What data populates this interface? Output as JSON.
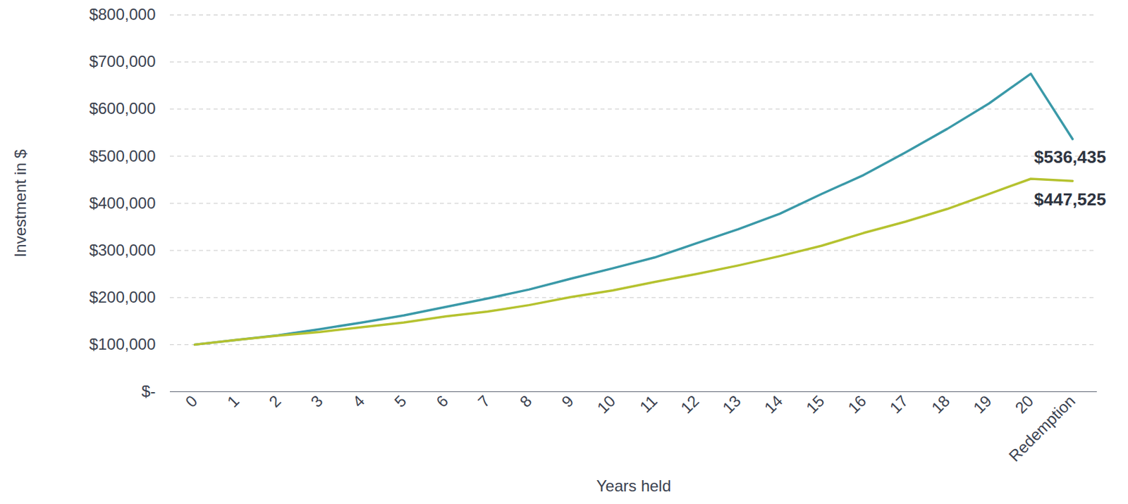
{
  "chart_data": {
    "type": "line",
    "x_label": "Years held",
    "y_label": "Investment in $",
    "categories": [
      "0",
      "1",
      "2",
      "3",
      "4",
      "5",
      "6",
      "7",
      "8",
      "9",
      "10",
      "11",
      "12",
      "13",
      "14",
      "15",
      "16",
      "17",
      "18",
      "19",
      "20",
      "Redemption"
    ],
    "series": [
      {
        "color": "#3a99a8",
        "values": [
          100000,
          110000,
          120000,
          133000,
          147000,
          162000,
          180000,
          198000,
          217000,
          240000,
          262000,
          285000,
          315000,
          345000,
          378000,
          420000,
          460000,
          508000,
          558000,
          612000,
          675000,
          536435
        ],
        "value_labels": [
          null,
          null,
          null,
          null,
          null,
          null,
          null,
          null,
          null,
          null,
          null,
          null,
          null,
          null,
          null,
          null,
          null,
          null,
          null,
          null,
          null,
          "$536,435"
        ]
      },
      {
        "color": "#b5c22f",
        "values": [
          100000,
          110000,
          119000,
          127000,
          137000,
          147000,
          160000,
          170000,
          184000,
          201000,
          215000,
          233000,
          250000,
          268000,
          288000,
          310000,
          337000,
          361000,
          388000,
          420000,
          452000,
          447525
        ],
        "value_labels": [
          null,
          null,
          null,
          null,
          null,
          null,
          null,
          null,
          null,
          null,
          null,
          null,
          null,
          null,
          null,
          null,
          null,
          null,
          null,
          null,
          null,
          "$447,525"
        ]
      }
    ],
    "ylim": [
      0,
      800000
    ],
    "yticks": [
      {
        "value": 0,
        "label": "$-"
      },
      {
        "value": 100000,
        "label": "$100,000"
      },
      {
        "value": 200000,
        "label": "$200,000"
      },
      {
        "value": 300000,
        "label": "$300,000"
      },
      {
        "value": 400000,
        "label": "$400,000"
      },
      {
        "value": 500000,
        "label": "$500,000"
      },
      {
        "value": 600000,
        "label": "$600,000"
      },
      {
        "value": 700000,
        "label": "$700,000"
      },
      {
        "value": 800000,
        "label": "$800,000"
      }
    ],
    "grid": true,
    "data_labels": true
  }
}
